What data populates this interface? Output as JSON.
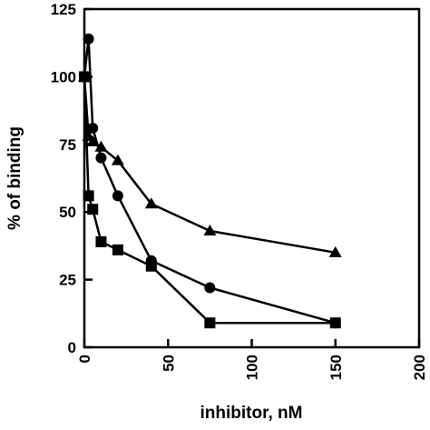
{
  "chart_data": {
    "type": "line",
    "title": "",
    "xlabel": "inhibitor, nM",
    "ylabel": "% of binding",
    "xlim": [
      0,
      200
    ],
    "ylim": [
      0,
      125
    ],
    "xticks": [
      0,
      50,
      100,
      150,
      200
    ],
    "yticks": [
      0,
      25,
      50,
      75,
      100,
      125
    ],
    "grid": false,
    "legend": "none",
    "series": [
      {
        "marker": "circle",
        "color": "#000000",
        "x": [
          0,
          2.5,
          5,
          10,
          20,
          40,
          75,
          150
        ],
        "y": [
          100,
          114,
          81,
          70,
          56,
          32,
          22,
          9
        ]
      },
      {
        "marker": "square",
        "color": "#000000",
        "x": [
          0,
          2.5,
          5,
          10,
          20,
          40,
          75,
          150
        ],
        "y": [
          100,
          56,
          51,
          39,
          36,
          30,
          9,
          9
        ]
      },
      {
        "marker": "triangle",
        "color": "#000000",
        "x": [
          0,
          2.5,
          5,
          10,
          20,
          40,
          75,
          150
        ],
        "y": [
          100,
          78,
          76,
          74,
          69,
          53,
          43,
          35
        ]
      }
    ]
  }
}
